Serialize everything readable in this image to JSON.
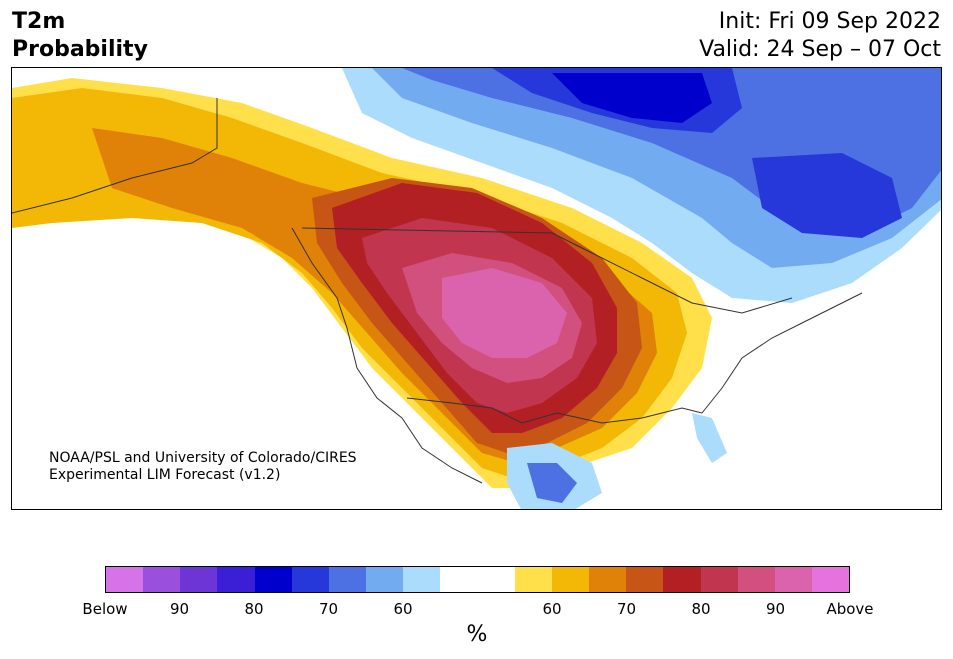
{
  "header": {
    "variable": "T2m",
    "product": "Probability",
    "init": "Init: Fri 09 Sep 2022",
    "valid": "Valid: 24 Sep – 07 Oct"
  },
  "credit": {
    "line1": "NOAA/PSL and University of Colorado/CIRES",
    "line2": "Experimental LIM Forecast (v1.2)"
  },
  "colorbar": {
    "unit": "%",
    "colors": [
      "#d773e8",
      "#9b50dd",
      "#6e35d6",
      "#3a1fd7",
      "#0000cc",
      "#2638d9",
      "#4d70e3",
      "#73abf0",
      "#abdcfb",
      "#ffffff",
      "#ffffff",
      "#ffe04b",
      "#f3b705",
      "#e08208",
      "#c65516",
      "#b22024",
      "#c2354e",
      "#d1507e",
      "#db63ae",
      "#e673dd"
    ],
    "labels": [
      "Below",
      "90",
      "80",
      "70",
      "60",
      "60",
      "70",
      "80",
      "90",
      "Above"
    ]
  },
  "colors": {
    "below_far": "#0000cc",
    "below": "#4d70e3",
    "below_light": "#abdcfb",
    "above_light": "#ffe04b",
    "above": "#e08208",
    "above_far": "#c2354e",
    "above_peak": "#db63ae"
  }
}
